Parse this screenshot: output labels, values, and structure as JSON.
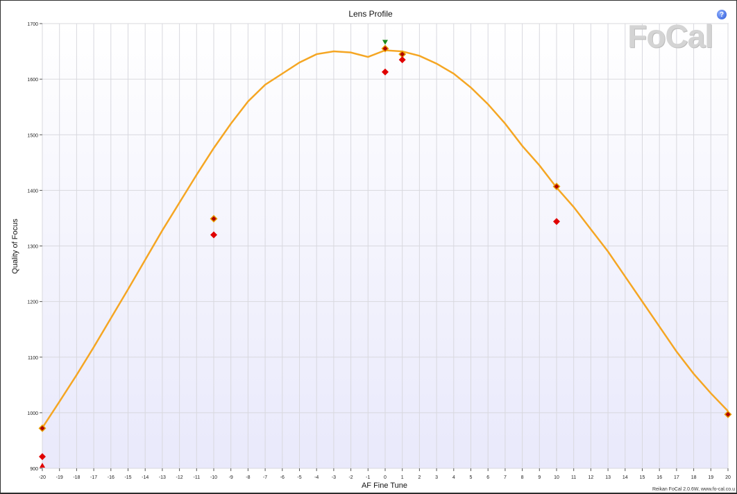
{
  "logo_text": "FoCal",
  "help_icon": "question-icon",
  "footer_text": "Reikan FoCal 2.0.6W, www.fo-cal.co.u",
  "colors": {
    "curve": "#f5a623",
    "point_fill": "#e00000",
    "point_ring": "#e8a000",
    "best_marker": "#1a8a1a",
    "plot_background_top": "#ffffff",
    "plot_background_bottom": "#e9e9fb"
  },
  "chart_data": {
    "type": "scatter",
    "title": "Lens Profile",
    "xlabel": "AF Fine Tune",
    "ylabel": "Quality of Focus",
    "xlim": [
      -20,
      20
    ],
    "ylim": [
      900,
      1700
    ],
    "x_ticks": [
      -20,
      -19,
      -18,
      -17,
      -16,
      -15,
      -14,
      -13,
      -12,
      -11,
      -10,
      -9,
      -8,
      -7,
      -6,
      -5,
      -4,
      -3,
      -2,
      -1,
      0,
      1,
      2,
      3,
      4,
      5,
      6,
      7,
      8,
      9,
      10,
      11,
      12,
      13,
      14,
      15,
      16,
      17,
      18,
      19,
      20
    ],
    "y_ticks": [
      900,
      1000,
      1100,
      1200,
      1300,
      1400,
      1500,
      1600,
      1700
    ],
    "grid": true,
    "series": [
      {
        "kind": "fit_curve",
        "x": [
          -20,
          -19,
          -18,
          -17,
          -16,
          -15,
          -14,
          -13,
          -12,
          -11,
          -10,
          -9,
          -8,
          -7,
          -6,
          -5,
          -4,
          -3,
          -2,
          -1,
          0,
          1,
          2,
          3,
          4,
          5,
          6,
          7,
          8,
          9,
          10,
          11,
          12,
          13,
          14,
          15,
          16,
          17,
          18,
          19,
          20
        ],
        "y": [
          973,
          1020,
          1068,
          1118,
          1170,
          1222,
          1275,
          1328,
          1378,
          1428,
          1476,
          1520,
          1560,
          1590,
          1610,
          1630,
          1645,
          1650,
          1648,
          1640,
          1652,
          1650,
          1642,
          1628,
          1610,
          1585,
          1555,
          1520,
          1480,
          1445,
          1405,
          1370,
          1330,
          1290,
          1245,
          1200,
          1155,
          1110,
          1070,
          1035,
          1003
        ]
      },
      {
        "kind": "measured_points",
        "x": [
          -20,
          -20,
          -10,
          -10,
          0,
          0,
          1,
          1,
          10,
          10,
          20
        ],
        "y": [
          972,
          921,
          1349,
          1320,
          1655,
          1613,
          1645,
          1635,
          1407,
          1344,
          997
        ],
        "ringed": [
          true,
          false,
          true,
          false,
          true,
          false,
          true,
          false,
          true,
          false,
          true
        ]
      },
      {
        "kind": "best_marker",
        "x": [
          0
        ],
        "y": [
          1667
        ]
      },
      {
        "kind": "out_of_range_marker",
        "x": [
          -20
        ],
        "y": [
          905
        ]
      }
    ]
  }
}
